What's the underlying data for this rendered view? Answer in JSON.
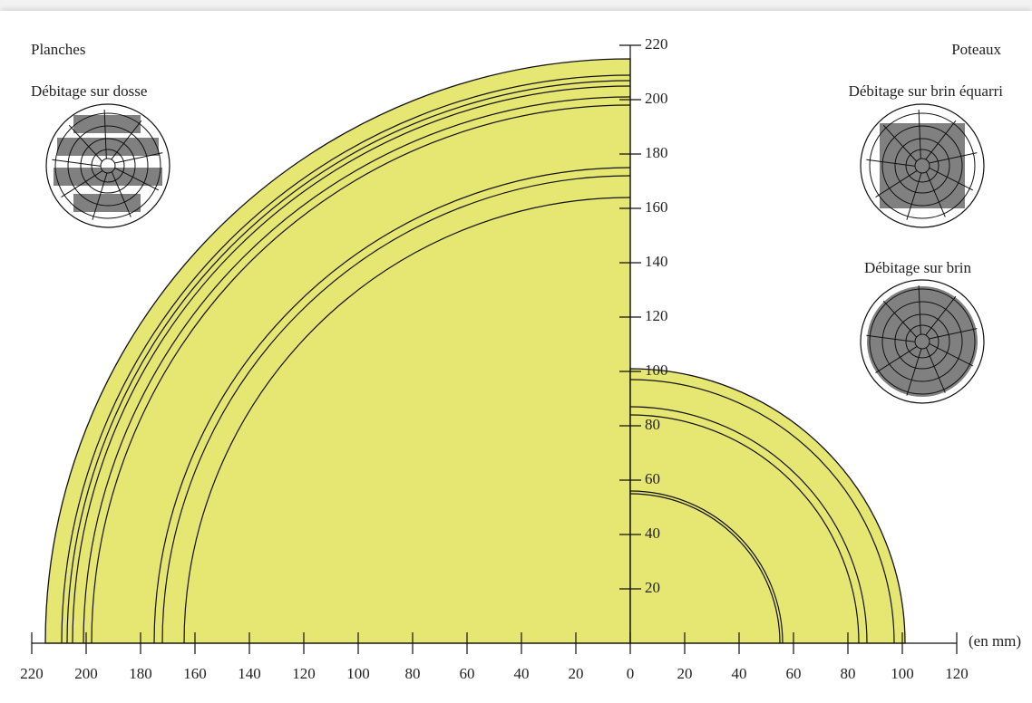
{
  "chart_data": {
    "type": "rings",
    "unit_label": "(en mm)",
    "color": "#e6e673",
    "panels": [
      {
        "title": "Planches",
        "subtitle": "Débitage sur dosse",
        "radii": [
          215,
          209,
          207,
          205,
          201,
          198,
          175,
          172,
          164
        ]
      },
      {
        "title": "Poteaux",
        "subtitles": [
          "Débitage sur brin équarri",
          "Débitage sur brin"
        ],
        "radii": [
          101,
          97,
          87,
          84,
          56,
          55
        ]
      }
    ],
    "xlim": [
      -220,
      120
    ],
    "xticks": [
      {
        "value": -220,
        "label": "220"
      },
      {
        "value": -200,
        "label": "200"
      },
      {
        "value": -180,
        "label": "180"
      },
      {
        "value": -160,
        "label": "160"
      },
      {
        "value": -140,
        "label": "140"
      },
      {
        "value": -120,
        "label": "120"
      },
      {
        "value": -100,
        "label": "100"
      },
      {
        "value": -80,
        "label": "80"
      },
      {
        "value": -60,
        "label": "60"
      },
      {
        "value": -40,
        "label": "40"
      },
      {
        "value": -20,
        "label": "20"
      },
      0,
      20,
      40,
      60,
      80,
      100,
      120
    ],
    "ylim": [
      0,
      220
    ],
    "yticks": [
      20,
      40,
      60,
      80,
      100,
      120,
      140,
      160,
      180,
      200,
      220
    ]
  }
}
